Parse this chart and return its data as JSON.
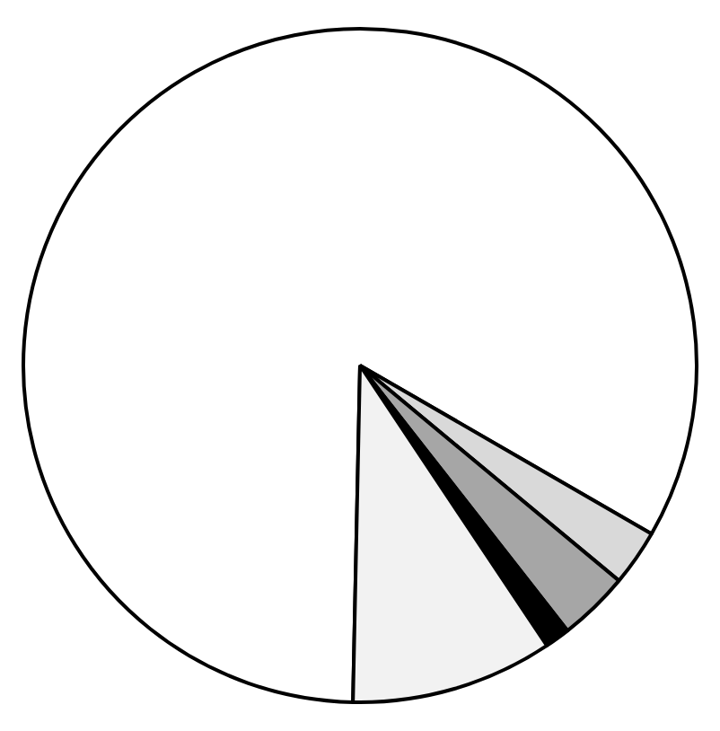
{
  "chart_data": {
    "type": "pie",
    "categories": [
      null,
      null,
      null,
      null,
      null
    ],
    "values": [
      83,
      2.7,
      3.4,
      1.2,
      9.7
    ],
    "colors": [
      "#ffffff",
      "#d9d9d9",
      "#a6a6a6",
      "#000000",
      "#f2f2f2"
    ],
    "legend": false
  }
}
